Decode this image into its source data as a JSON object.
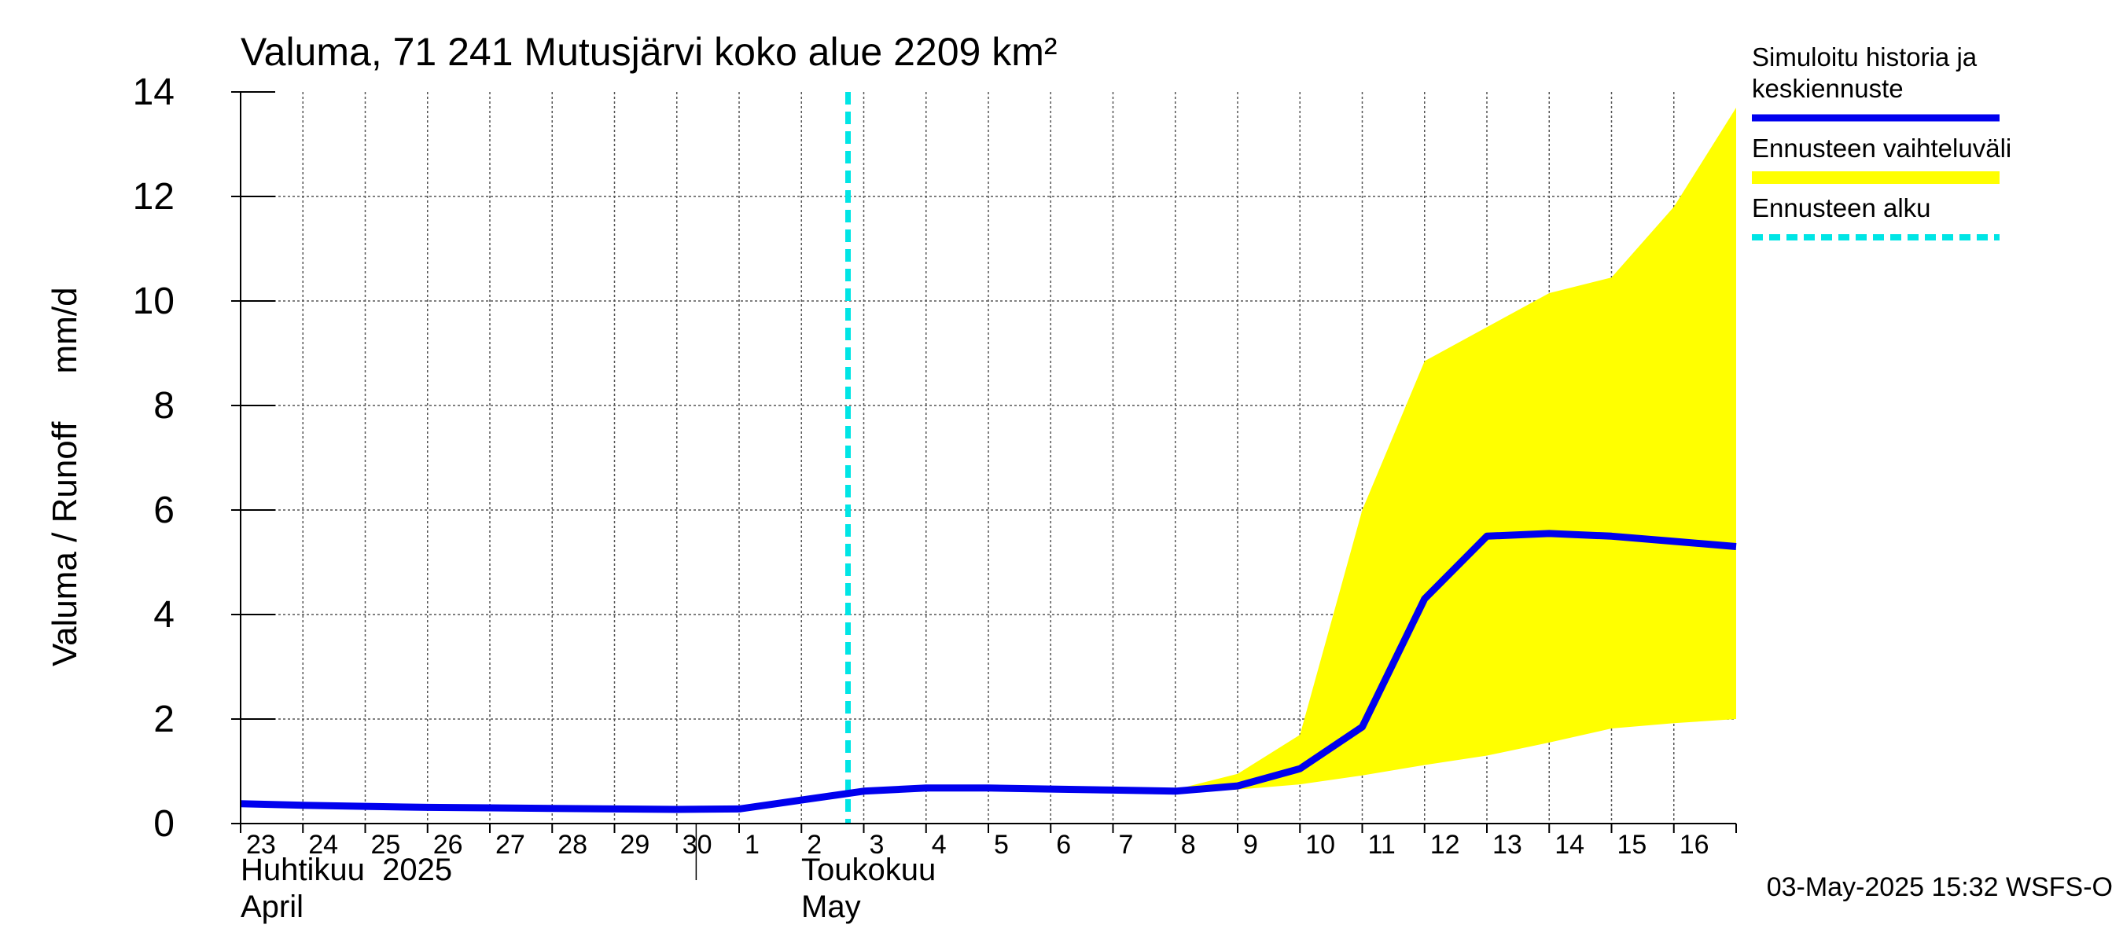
{
  "chart_data": {
    "type": "line",
    "title": "Valuma, 71 241 Mutusjärvi koko alue 2209 km²",
    "ylabel": "Valuma / Runoff     mm/d",
    "ylim": [
      0,
      14
    ],
    "yticks": [
      "0",
      "2",
      "4",
      "6",
      "8",
      "10",
      "12",
      "14"
    ],
    "grid": true,
    "legend_position": "right",
    "x_tick_labels": [
      "23",
      "24",
      "25",
      "26",
      "27",
      "28",
      "29",
      "30",
      "1",
      "2",
      "3",
      "4",
      "5",
      "6",
      "7",
      "8",
      "9",
      "10",
      "11",
      "12",
      "13",
      "14",
      "15",
      "16"
    ],
    "month_labels": [
      {
        "fi": "Huhtikuu  2025",
        "en": "April"
      },
      {
        "fi": "Toukokuu",
        "en": "May"
      }
    ],
    "x": [
      "2025-04-23",
      "2025-04-24",
      "2025-04-25",
      "2025-04-26",
      "2025-04-27",
      "2025-04-28",
      "2025-04-29",
      "2025-04-30",
      "2025-05-01",
      "2025-05-02",
      "2025-05-03",
      "2025-05-04",
      "2025-05-05",
      "2025-05-06",
      "2025-05-07",
      "2025-05-08",
      "2025-05-09",
      "2025-05-10",
      "2025-05-11",
      "2025-05-12",
      "2025-05-13",
      "2025-05-14",
      "2025-05-15",
      "2025-05-16",
      "2025-05-17"
    ],
    "series": [
      {
        "name": "Simuloitu historia ja keskiennuste",
        "color": "#0000ee",
        "values": [
          0.38,
          0.35,
          0.33,
          0.31,
          0.3,
          0.29,
          0.28,
          0.27,
          0.28,
          0.45,
          0.62,
          0.68,
          0.68,
          0.66,
          0.64,
          0.62,
          0.72,
          1.05,
          1.85,
          4.3,
          5.5,
          5.55,
          5.5,
          5.4,
          5.3
        ]
      }
    ],
    "band": {
      "name": "Ennusteen vaihteluväli",
      "color": "#ffff00",
      "upper": [
        null,
        null,
        null,
        null,
        null,
        null,
        null,
        null,
        null,
        null,
        0.62,
        0.68,
        0.68,
        0.66,
        0.64,
        0.65,
        0.95,
        1.7,
        6.0,
        8.85,
        9.5,
        10.15,
        10.45,
        11.8,
        13.7
      ],
      "lower": [
        null,
        null,
        null,
        null,
        null,
        null,
        null,
        null,
        null,
        null,
        0.62,
        0.68,
        0.68,
        0.66,
        0.64,
        0.6,
        0.65,
        0.75,
        0.92,
        1.12,
        1.3,
        1.55,
        1.82,
        1.92,
        2.0
      ]
    },
    "forecast_start": {
      "name": "Ennusteen alku",
      "x": "2025-05-03",
      "color": "#00e5e5"
    },
    "legend": [
      {
        "label_lines": [
          "Simuloitu historia ja",
          "keskiennuste"
        ],
        "color": "#0000ee",
        "style": "line"
      },
      {
        "label_lines": [
          "Ennusteen vaihteluväli"
        ],
        "color": "#ffff00",
        "style": "band"
      },
      {
        "label_lines": [
          "Ennusteen alku"
        ],
        "color": "#00e5e5",
        "style": "dashed"
      }
    ],
    "footer": "03-May-2025 15:32 WSFS-O"
  }
}
